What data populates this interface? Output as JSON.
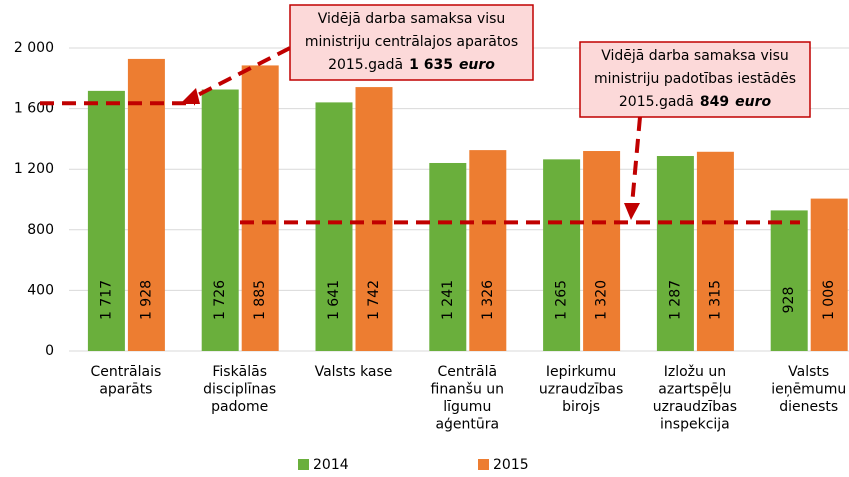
{
  "chart_data": {
    "type": "bar",
    "categories": [
      [
        "Centrālais",
        "aparāts"
      ],
      [
        "Fiskālās",
        "disciplīnas",
        "padome"
      ],
      [
        "Valsts kase"
      ],
      [
        "Centrālā",
        "finanšu un",
        "līgumu",
        "aģentūra"
      ],
      [
        "Iepirkumu",
        "uzraudzības",
        "birojs"
      ],
      [
        "Izložu un",
        "azartspēļu",
        "uzraudzības",
        "inspekcija"
      ],
      [
        "Valsts",
        "ieņēmumu",
        "dienests"
      ]
    ],
    "series": [
      {
        "name": "2014",
        "color": "#6aaf3c",
        "values": [
          1717,
          1726,
          1641,
          1241,
          1265,
          1287,
          928
        ],
        "value_labels": [
          "1 717",
          "1 726",
          "1 641",
          "1 241",
          "1 265",
          "1 287",
          "928"
        ]
      },
      {
        "name": "2015",
        "color": "#ed7d31",
        "values": [
          1928,
          1885,
          1742,
          1326,
          1320,
          1315,
          1006
        ],
        "value_labels": [
          "1 928",
          "1 885",
          "1 742",
          "1 326",
          "1 320",
          "1 315",
          "1 006"
        ]
      }
    ],
    "ylim": [
      0,
      2000
    ],
    "yticks": [
      0,
      400,
      800,
      {
        "value": 1200,
        "label": "1 200"
      },
      {
        "value": 1600,
        "label": "1 600"
      },
      {
        "value": 2000,
        "label": "2 000"
      }
    ],
    "grid": true,
    "legend": "bottom",
    "annotations": [
      {
        "lines": [
          "Vidējā darba samaksa visu",
          "ministriju centrālajos aparātos",
          "2015.gadā"
        ],
        "value": 1635,
        "value_label": "1 635",
        "unit": "euro",
        "color": "#c00000"
      },
      {
        "lines": [
          "Vidējā darba samaksa visu",
          "ministriju padotības iestādēs",
          "2015.gadā"
        ],
        "value": 849,
        "value_label": "849",
        "unit": "euro",
        "color": "#c00000"
      }
    ]
  }
}
